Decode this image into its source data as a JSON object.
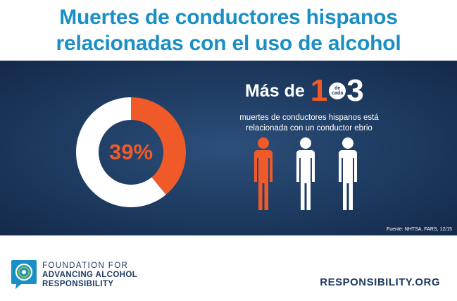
{
  "title": {
    "line1": "Muertes de conductores hispanos",
    "line2": "relacionadas con el uso de alcohol"
  },
  "chart_data": {
    "type": "pie",
    "slices": [
      {
        "value": 39,
        "color": "#f05a28"
      },
      {
        "value": 61,
        "color": "#ffffff"
      }
    ],
    "center_label": "39%"
  },
  "headline": {
    "prefix": "Más de",
    "numerator": "1",
    "badge_line1": "de",
    "badge_line2": "cada",
    "denominator": "3"
  },
  "description": {
    "line1": "muertes de conductores hispanos está",
    "line2": "relacionada con un conductor ebrio"
  },
  "people": [
    {
      "color": "#f05a28"
    },
    {
      "color": "#ffffff"
    },
    {
      "color": "#ffffff"
    }
  ],
  "source": "Fuente: NHTSA, FARS, 12/15",
  "footer": {
    "org_line1": "FOUNDATION FOR",
    "org_line2": "ADVANCING ALCOHOL",
    "org_line3": "RESPONSIBILITY",
    "website": "RESPONSIBILITY.ORG"
  },
  "colors": {
    "accent": "#f05a28",
    "brand_blue": "#1a8fc4",
    "panel": "#1d3a60"
  }
}
